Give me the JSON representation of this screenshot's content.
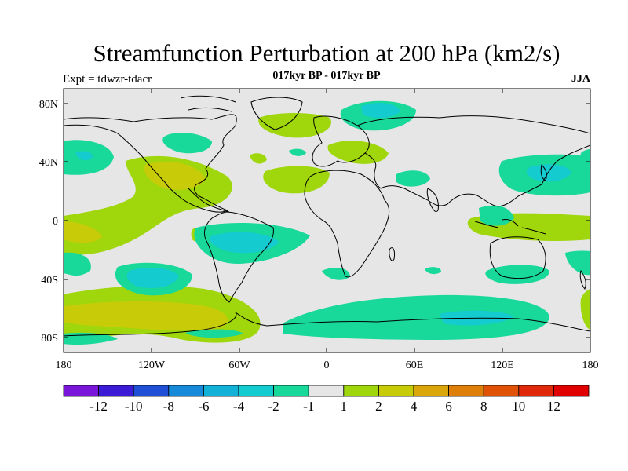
{
  "title": "Streamfunction Perturbation at 200 hPa (km2/s)",
  "experiment": "Expt = tdwzr-tdacr",
  "period": "017kyr BP - 017kyr BP",
  "season": "JJA",
  "lat_ticks": [
    "80N",
    "40N",
    "0",
    "40S",
    "80S"
  ],
  "lon_ticks": [
    "180",
    "120W",
    "60W",
    "0",
    "60E",
    "120E",
    "180"
  ],
  "colorbar": {
    "labels": [
      "-12",
      "-10",
      "-8",
      "-6",
      "-4",
      "-2",
      "-1",
      "1",
      "2",
      "4",
      "6",
      "8",
      "10",
      "12"
    ],
    "colors": [
      "#7a16d9",
      "#3b1bd6",
      "#1f4fd4",
      "#168ad9",
      "#12b1d8",
      "#14cbd0",
      "#18d89a",
      "#e6e6e6",
      "#9fd60c",
      "#c8cc08",
      "#daa60a",
      "#de7f0a",
      "#e05208",
      "#e0280a",
      "#e00000"
    ]
  },
  "colors": {
    "background": "#e6e6e6",
    "pos_1_2": "#9fd60c",
    "pos_2_4": "#c8cc08",
    "neg_1_2": "#18d89a",
    "neg_2_4": "#14cbd0",
    "coastline": "#000000"
  }
}
